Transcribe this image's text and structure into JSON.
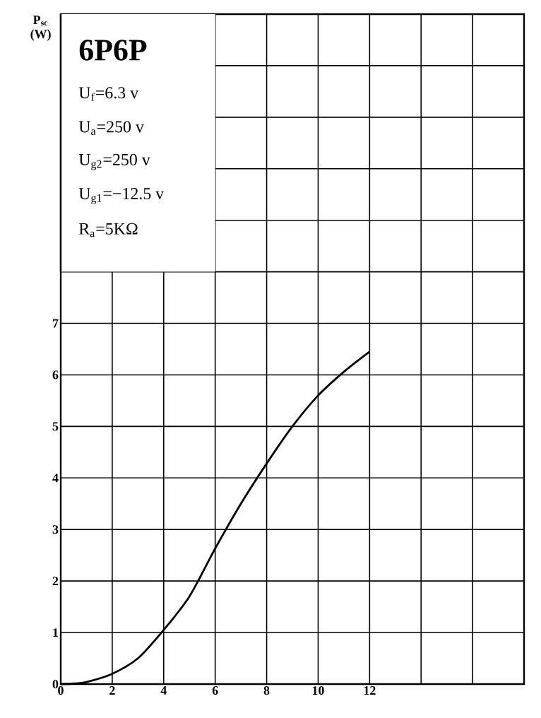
{
  "chart_data": {
    "type": "line",
    "title": "6P6P",
    "ylabel": "P$_{sc}$ (W)",
    "annotations": [
      "U$_{f}$=6.3 v",
      "U$_{a}$=250 v",
      "U$_{g2}$=250 v",
      "U$_{g1}$=−12.5 v",
      "R$_{a}$=5KΩ"
    ],
    "x": [
      0,
      0.5,
      1,
      2,
      3,
      4,
      5,
      6,
      7,
      8,
      9,
      10,
      11,
      12
    ],
    "values": [
      0,
      0.01,
      0.04,
      0.2,
      0.5,
      1.05,
      1.7,
      2.63,
      3.5,
      4.28,
      5.0,
      5.6,
      6.06,
      6.45
    ],
    "color": "#000000",
    "marker": "none",
    "line_style": "solid",
    "grid": true,
    "xlim": [
      0,
      18
    ],
    "ylim": [
      0,
      13
    ],
    "xticks": [
      0,
      2,
      4,
      6,
      8,
      10,
      12,
      {
        "value": 14,
        "label": null
      },
      {
        "value": 16,
        "label": null
      },
      {
        "value": 18,
        "label": null
      }
    ],
    "yticks": [
      0,
      1,
      2,
      3,
      4,
      5,
      6,
      7,
      {
        "value": 8,
        "label": null
      },
      {
        "value": 9,
        "label": null
      },
      {
        "value": 10,
        "label": null
      },
      {
        "value": 11,
        "label": null
      },
      {
        "value": 12,
        "label": null
      },
      {
        "value": 13,
        "label": null
      }
    ]
  }
}
